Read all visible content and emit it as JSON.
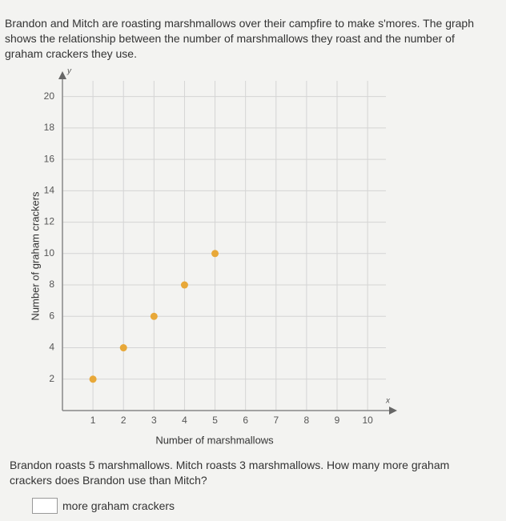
{
  "intro": "Brandon and Mitch are roasting marshmallows over their campfire to make s'mores. The graph shows the relationship between the number of marshmallows they roast and the number of graham crackers they use.",
  "chart_data": {
    "type": "scatter",
    "xlabel": "Number of marshmallows",
    "ylabel": "Number of graham crackers",
    "x_axis_symbol": "x",
    "y_axis_symbol": "y",
    "x": [
      1,
      2,
      3,
      4,
      5
    ],
    "values": [
      2,
      4,
      6,
      8,
      10
    ],
    "color": "#e8a838",
    "xlim": [
      0,
      10.6
    ],
    "ylim": [
      0,
      21
    ],
    "xticks": [
      1,
      2,
      3,
      4,
      5,
      6,
      7,
      8,
      9,
      10
    ],
    "yticks": [
      2,
      4,
      6,
      8,
      10,
      12,
      14,
      16,
      18,
      20
    ],
    "grid": true
  },
  "question": "Brandon roasts 5 marshmallows. Mitch roasts 3 marshmallows. How many more graham crackers does Brandon use than Mitch?",
  "answer_suffix": "more graham crackers"
}
